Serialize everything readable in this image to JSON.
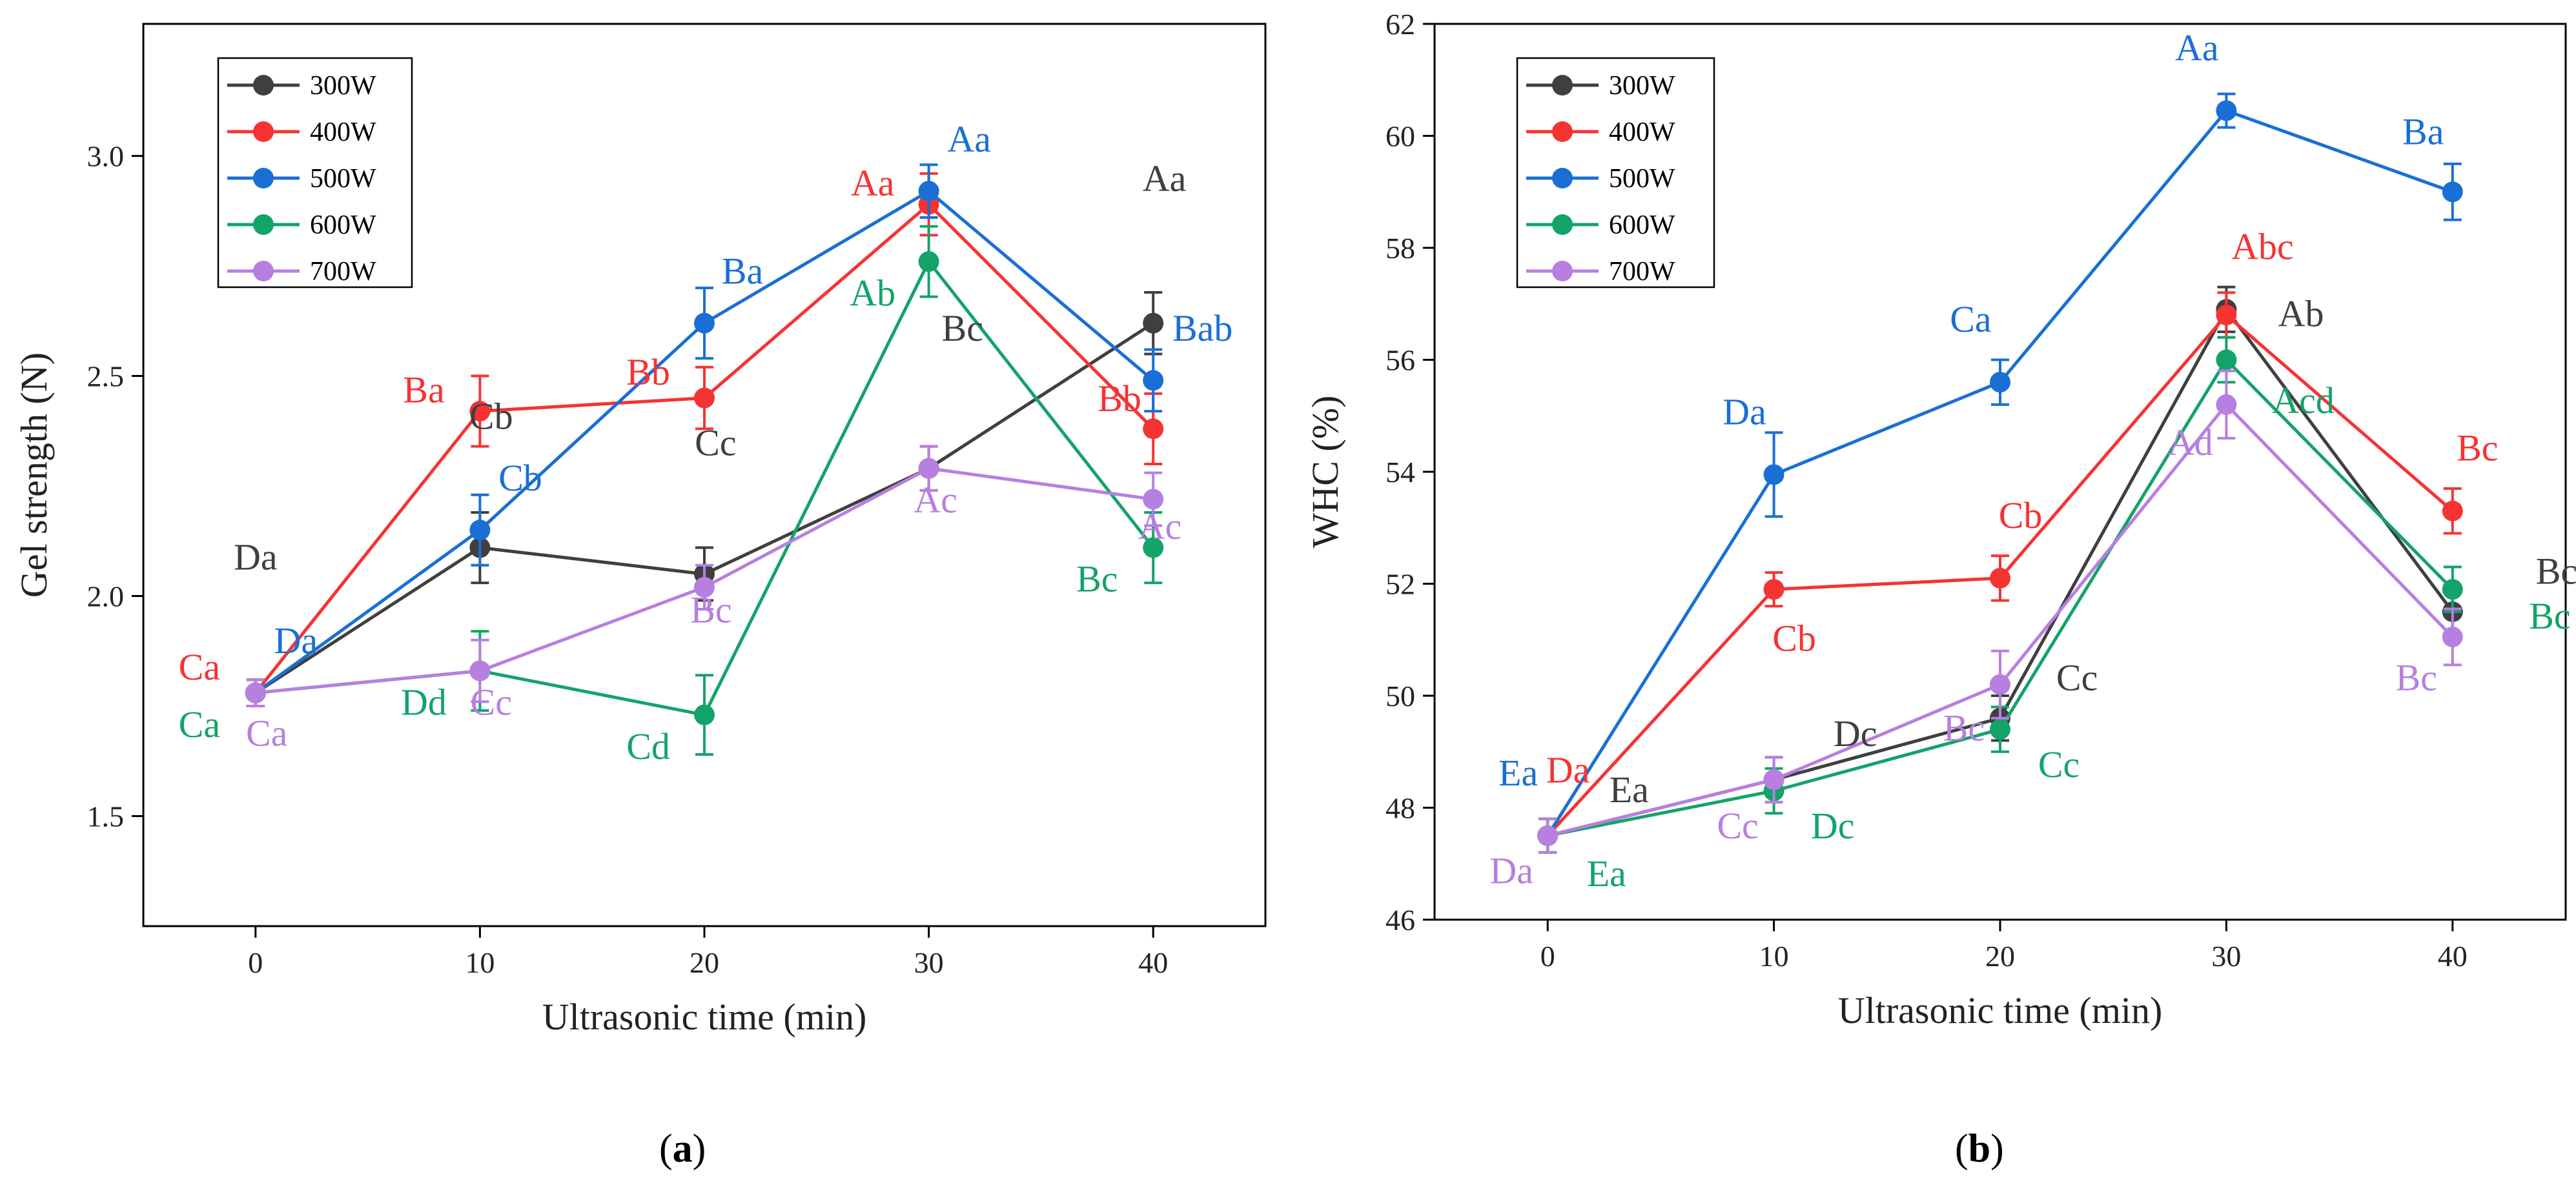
{
  "colors": {
    "300W": "#3f3f3f",
    "400W": "#f53333",
    "500W": "#1a6fd6",
    "600W": "#14a36a",
    "700W": "#b77fe0"
  },
  "chart_data": [
    {
      "type": "line",
      "panel_label": "(a)",
      "panel_letter": "a",
      "xlabel": "Ultrasonic time (min)",
      "ylabel": "Gel strength (N)",
      "xlim": [
        -5,
        45
      ],
      "ylim": [
        1.25,
        3.3
      ],
      "xticks": [
        0,
        10,
        20,
        30,
        40
      ],
      "yticks": [
        1.5,
        2.0,
        2.5,
        3.0
      ],
      "ytick_labels": [
        "1.5",
        "2.0",
        "2.5",
        "3.0"
      ],
      "x": [
        0,
        10,
        20,
        30,
        40
      ],
      "legend": [
        "300W",
        "400W",
        "500W",
        "600W",
        "700W"
      ],
      "series": [
        {
          "name": "300W",
          "values": [
            1.78,
            2.11,
            2.05,
            2.29,
            2.62
          ],
          "errors": [
            0.03,
            0.08,
            0.06,
            0.05,
            0.07
          ]
        },
        {
          "name": "400W",
          "values": [
            1.78,
            2.42,
            2.45,
            2.89,
            2.38
          ],
          "errors": [
            0.03,
            0.08,
            0.07,
            0.07,
            0.08
          ]
        },
        {
          "name": "500W",
          "values": [
            1.78,
            2.15,
            2.62,
            2.92,
            2.49
          ],
          "errors": [
            0.03,
            0.08,
            0.08,
            0.06,
            0.07
          ]
        },
        {
          "name": "600W",
          "values": [
            1.78,
            1.83,
            1.73,
            2.76,
            2.11
          ],
          "errors": [
            0.03,
            0.09,
            0.09,
            0.08,
            0.08
          ]
        },
        {
          "name": "700W",
          "values": [
            1.78,
            1.83,
            2.02,
            2.29,
            2.22
          ],
          "errors": [
            0.03,
            0.07,
            0.05,
            0.05,
            0.06
          ]
        }
      ],
      "annotations": [
        {
          "text": "Da",
          "series": "300W",
          "x": 0,
          "y": 2.06
        },
        {
          "text": "Cb",
          "series": "300W",
          "x": 10.5,
          "y": 2.38
        },
        {
          "text": "Cc",
          "series": "300W",
          "x": 20.5,
          "y": 2.32
        },
        {
          "text": "Bc",
          "series": "300W",
          "x": 31.5,
          "y": 2.58
        },
        {
          "text": "Aa",
          "series": "300W",
          "x": 40.5,
          "y": 2.92
        },
        {
          "text": "Ca",
          "series": "400W",
          "x": -2.5,
          "y": 1.81
        },
        {
          "text": "Ba",
          "series": "400W",
          "x": 7.5,
          "y": 2.44
        },
        {
          "text": "Bb",
          "series": "400W",
          "x": 17.5,
          "y": 2.48
        },
        {
          "text": "Aa",
          "series": "400W",
          "x": 27.5,
          "y": 2.91
        },
        {
          "text": "Bb",
          "series": "400W",
          "x": 38.5,
          "y": 2.42
        },
        {
          "text": "Da",
          "series": "500W",
          "x": 1.8,
          "y": 1.87
        },
        {
          "text": "Cb",
          "series": "500W",
          "x": 11.8,
          "y": 2.24
        },
        {
          "text": "Ba",
          "series": "500W",
          "x": 21.7,
          "y": 2.71
        },
        {
          "text": "Aa",
          "series": "500W",
          "x": 31.8,
          "y": 3.01
        },
        {
          "text": "Bab",
          "series": "500W",
          "x": 42.2,
          "y": 2.58
        },
        {
          "text": "Ca",
          "series": "600W",
          "x": -2.5,
          "y": 1.68
        },
        {
          "text": "Dd",
          "series": "600W",
          "x": 7.5,
          "y": 1.73
        },
        {
          "text": "Cd",
          "series": "600W",
          "x": 17.5,
          "y": 1.63
        },
        {
          "text": "Ab",
          "series": "600W",
          "x": 27.5,
          "y": 2.66
        },
        {
          "text": "Bc",
          "series": "600W",
          "x": 37.5,
          "y": 2.01
        },
        {
          "text": "Ca",
          "series": "700W",
          "x": 0.5,
          "y": 1.66
        },
        {
          "text": "Cc",
          "series": "700W",
          "x": 10.5,
          "y": 1.73
        },
        {
          "text": "Bc",
          "series": "700W",
          "x": 20.3,
          "y": 1.94
        },
        {
          "text": "Ac",
          "series": "700W",
          "x": 30.3,
          "y": 2.19
        },
        {
          "text": "Ac",
          "series": "700W",
          "x": 40.3,
          "y": 2.13
        }
      ]
    },
    {
      "type": "line",
      "panel_label": "(b)",
      "panel_letter": "b",
      "xlabel": "Ultrasonic time (min)",
      "ylabel": "WHC (%)",
      "xlim": [
        -5,
        45
      ],
      "ylim": [
        46,
        62
      ],
      "xticks": [
        0,
        10,
        20,
        30,
        40
      ],
      "yticks": [
        46,
        48,
        50,
        52,
        54,
        56,
        58,
        60,
        62
      ],
      "ytick_labels": [
        "46",
        "48",
        "50",
        "52",
        "54",
        "56",
        "58",
        "60",
        "62"
      ],
      "x": [
        0,
        10,
        20,
        30,
        40
      ],
      "legend": [
        "300W",
        "400W",
        "500W",
        "600W",
        "700W"
      ],
      "series": [
        {
          "name": "300W",
          "values": [
            47.5,
            48.5,
            49.6,
            56.9,
            51.5
          ],
          "errors": [
            0.3,
            0.4,
            0.4,
            0.4,
            0.4
          ]
        },
        {
          "name": "400W",
          "values": [
            47.5,
            51.9,
            52.1,
            56.8,
            53.3
          ],
          "errors": [
            0.3,
            0.3,
            0.4,
            0.4,
            0.4
          ]
        },
        {
          "name": "500W",
          "values": [
            47.5,
            53.95,
            55.6,
            60.45,
            59.0
          ],
          "errors": [
            0.3,
            0.75,
            0.4,
            0.3,
            0.5
          ]
        },
        {
          "name": "600W",
          "values": [
            47.5,
            48.3,
            49.4,
            56.0,
            51.9
          ],
          "errors": [
            0.3,
            0.4,
            0.4,
            0.4,
            0.4
          ]
        },
        {
          "name": "700W",
          "values": [
            47.5,
            48.5,
            50.2,
            55.2,
            51.05
          ],
          "errors": [
            0.3,
            0.4,
            0.6,
            0.6,
            0.5
          ]
        }
      ],
      "annotations": [
        {
          "text": "Ea",
          "series": "300W",
          "x": 3.6,
          "y": 48.1
        },
        {
          "text": "Dc",
          "series": "300W",
          "x": 13.6,
          "y": 49.1
        },
        {
          "text": "Cc",
          "series": "300W",
          "x": 23.4,
          "y": 50.1
        },
        {
          "text": "Ab",
          "series": "300W",
          "x": 33.3,
          "y": 56.6
        },
        {
          "text": "Bc",
          "series": "300W",
          "x": 44.6,
          "y": 52.0
        },
        {
          "text": "Da",
          "series": "400W",
          "x": 0.9,
          "y": 48.45
        },
        {
          "text": "Cb",
          "series": "400W",
          "x": 10.9,
          "y": 50.8
        },
        {
          "text": "Cb",
          "series": "400W",
          "x": 20.9,
          "y": 53.0
        },
        {
          "text": "Abc",
          "series": "400W",
          "x": 31.6,
          "y": 57.8
        },
        {
          "text": "Bc",
          "series": "400W",
          "x": 41.1,
          "y": 54.2
        },
        {
          "text": "Ea",
          "series": "500W",
          "x": -1.3,
          "y": 48.4
        },
        {
          "text": "Da",
          "series": "500W",
          "x": 8.7,
          "y": 54.85
        },
        {
          "text": "Ca",
          "series": "500W",
          "x": 18.7,
          "y": 56.5
        },
        {
          "text": "Aa",
          "series": "500W",
          "x": 28.7,
          "y": 61.35
        },
        {
          "text": "Ba",
          "series": "500W",
          "x": 38.7,
          "y": 59.85
        },
        {
          "text": "Ea",
          "series": "600W",
          "x": 2.6,
          "y": 46.6
        },
        {
          "text": "Dc",
          "series": "600W",
          "x": 12.6,
          "y": 47.45
        },
        {
          "text": "Cc",
          "series": "600W",
          "x": 22.6,
          "y": 48.55
        },
        {
          "text": "Acd",
          "series": "600W",
          "x": 33.4,
          "y": 55.05
        },
        {
          "text": "Bc",
          "series": "600W",
          "x": 44.3,
          "y": 51.2
        },
        {
          "text": "Da",
          "series": "700W",
          "x": -1.6,
          "y": 46.65
        },
        {
          "text": "Cc",
          "series": "700W",
          "x": 8.4,
          "y": 47.45
        },
        {
          "text": "Bc",
          "series": "700W",
          "x": 18.4,
          "y": 49.2
        },
        {
          "text": "Ad",
          "series": "700W",
          "x": 28.4,
          "y": 54.3
        },
        {
          "text": "Bc",
          "series": "700W",
          "x": 38.4,
          "y": 50.1
        }
      ]
    }
  ]
}
